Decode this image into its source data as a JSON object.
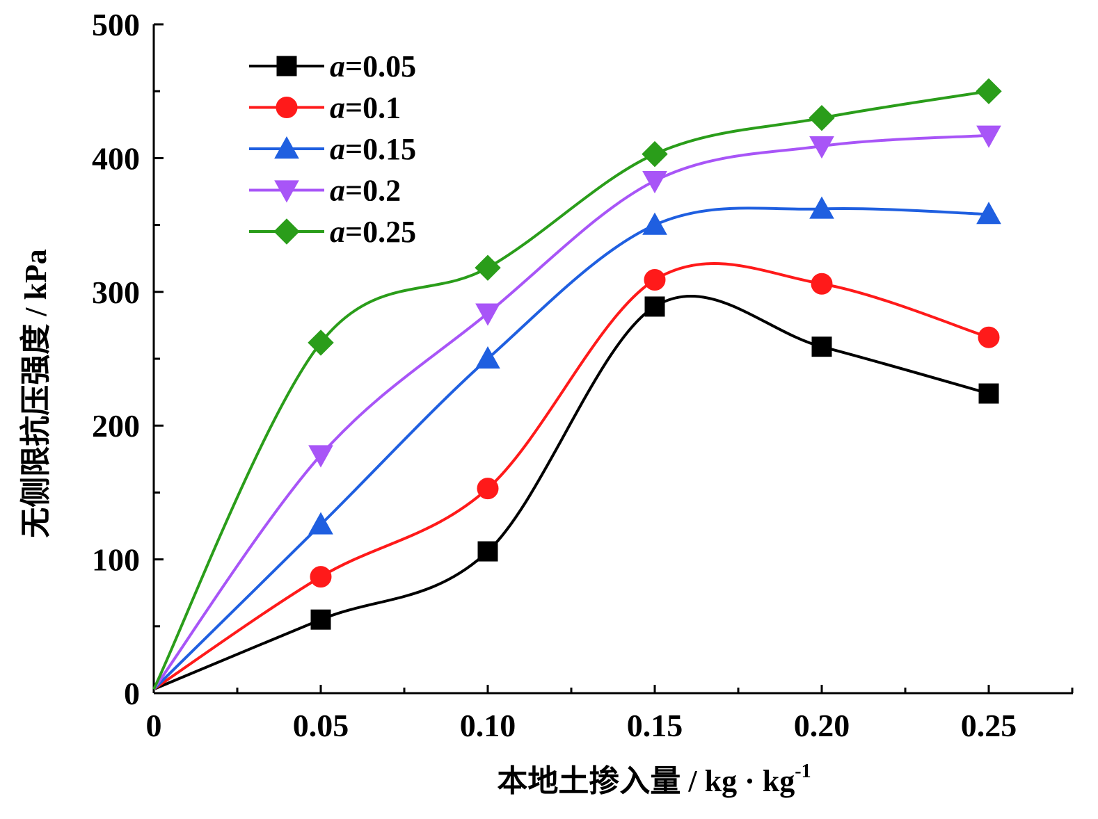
{
  "chart_data": {
    "type": "line",
    "xlabel": "本地土掺入量 / kg · kg",
    "xlabel_sup": "-1",
    "ylabel": "无侧限抗压强度 / kPa",
    "xlim": [
      0,
      0.275
    ],
    "ylim": [
      0,
      500
    ],
    "x_ticks": [
      0,
      0.05,
      0.1,
      0.15,
      0.2,
      0.25
    ],
    "x_tick_labels": [
      "0",
      "0.05",
      "0.10",
      "0.15",
      "0.20",
      "0.25"
    ],
    "y_ticks": [
      0,
      100,
      200,
      300,
      400,
      500
    ],
    "y_tick_labels": [
      "0",
      "100",
      "200",
      "300",
      "400",
      "500"
    ],
    "grid": false,
    "legend_position": "top-left",
    "x": [
      0,
      0.05,
      0.1,
      0.15,
      0.2,
      0.25
    ],
    "series": [
      {
        "name": "a=0.05",
        "name_var": "a",
        "name_value": "=0.05",
        "color": "#000000",
        "marker": "square",
        "values": [
          3,
          55,
          106,
          289,
          259,
          224
        ]
      },
      {
        "name": "a=0.1",
        "name_var": "a",
        "name_value": "=0.1",
        "color": "#ff1a1a",
        "marker": "circle",
        "values": [
          3,
          87,
          153,
          309,
          306,
          266
        ]
      },
      {
        "name": "a=0.15",
        "name_var": "a",
        "name_value": "=0.15",
        "color": "#1f5fe0",
        "marker": "triangle-up",
        "values": [
          3,
          126,
          250,
          350,
          362,
          358
        ]
      },
      {
        "name": "a=0.2",
        "name_var": "a",
        "name_value": "=0.2",
        "color": "#a855f7",
        "marker": "triangle-down",
        "values": [
          3,
          178,
          284,
          383,
          409,
          417
        ]
      },
      {
        "name": "a=0.25",
        "name_var": "a",
        "name_value": "=0.25",
        "color": "#2a9d1a",
        "marker": "diamond",
        "values": [
          3,
          262,
          318,
          403,
          430,
          450
        ]
      }
    ]
  }
}
